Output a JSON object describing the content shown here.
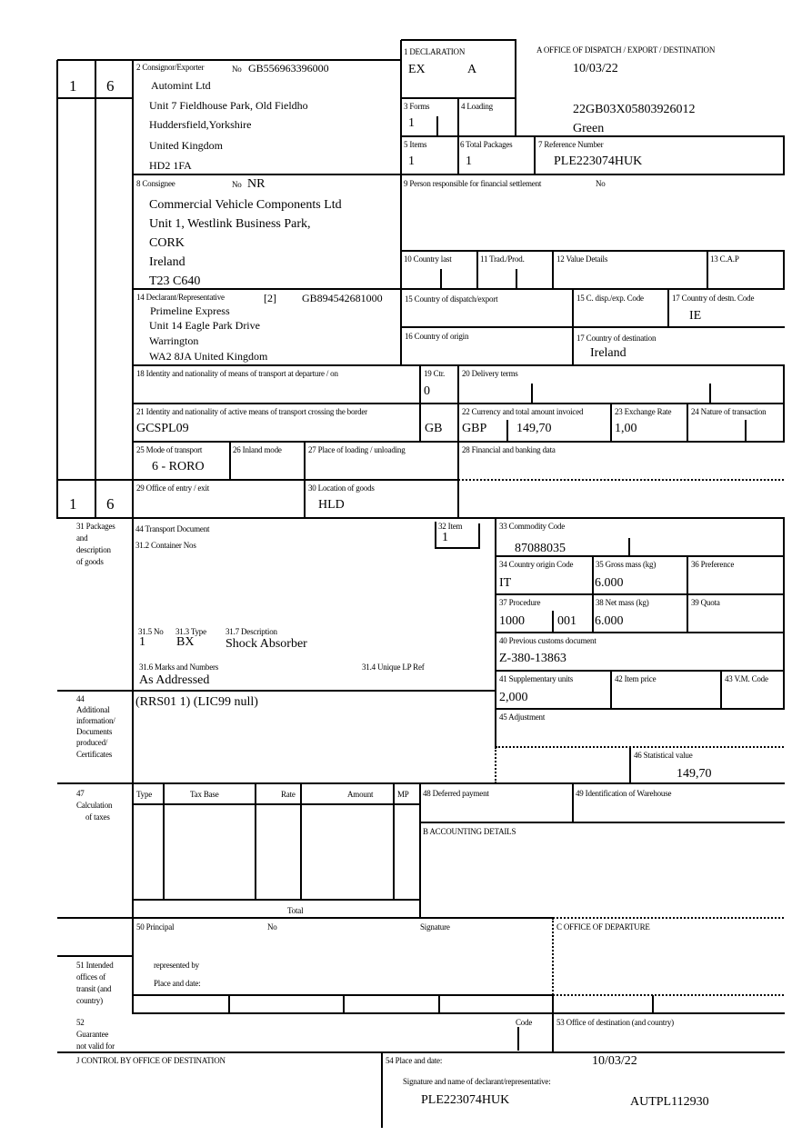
{
  "header": {
    "office_label": "A     OFFICE OF DISPATCH / EXPORT / DESTINATION",
    "date": "10/03/22",
    "mrn": "22GB03X05803926012",
    "route": "Green"
  },
  "left_counters": {
    "top": [
      "1",
      "6"
    ],
    "bottom": [
      "1",
      "6"
    ]
  },
  "box1": {
    "label": "1 DECLARATION",
    "type": "EX",
    "subtype": "A"
  },
  "box2": {
    "label": "2 Consignor/Exporter",
    "no_label": "No",
    "no": "GB556963396000",
    "lines": [
      "Automint Ltd",
      "Unit 7 Fieldhouse Park, Old Fieldho",
      "Huddersfield,Yorkshire",
      "United Kingdom",
      "HD2 1FA"
    ]
  },
  "box3": {
    "label": "3 Forms",
    "value": "1"
  },
  "box4": {
    "label": "4 Loading"
  },
  "box5": {
    "label": "5 Items",
    "value": "1"
  },
  "box6": {
    "label": "6 Total Packages",
    "value": "1"
  },
  "box7": {
    "label": "7 Reference Number",
    "value": "PLE223074HUK"
  },
  "box8": {
    "label": "8 Consignee",
    "no_label": "No",
    "no": "NR",
    "lines": [
      "Commercial Vehicle Components Ltd",
      "Unit 1, Westlink Business Park,",
      "CORK",
      "Ireland",
      "T23 C640"
    ]
  },
  "box9": {
    "label": "9 Person responsible for financial settlement",
    "no_label": "No"
  },
  "box10": {
    "label": "10 Country last"
  },
  "box11": {
    "label": "11 Trad./Prod."
  },
  "box12": {
    "label": "12 Value Details"
  },
  "box13": {
    "label": "13 C.A.P"
  },
  "box14": {
    "label": "14 Declarant/Representative",
    "rep_code": "[2]",
    "no": "GB894542681000",
    "lines": [
      "Primeline Express",
      "Unit 14 Eagle Park Drive",
      "Warrington",
      "WA2 8JA United Kingdom"
    ]
  },
  "box15": {
    "label": "15 Country of dispatch/export"
  },
  "box15a": {
    "label": "15 C. disp./exp. Code"
  },
  "box17a": {
    "label": "17 Country of destn. Code",
    "value": "IE"
  },
  "box16": {
    "label": "16 Country of origin"
  },
  "box17": {
    "label": "17 Country of destination",
    "value": "Ireland"
  },
  "box18": {
    "label": "18 Identity and nationality of means of transport at departure / on"
  },
  "box19": {
    "label": "19 Ctr.",
    "value": "0"
  },
  "box20": {
    "label": "20 Delivery terms"
  },
  "box21": {
    "label": "21 Identity and nationality of active means of transport crossing the border",
    "value": "GCSPL09",
    "nationality": "GB"
  },
  "box22": {
    "label": "22 Currency and total amount invoiced",
    "currency": "GBP",
    "amount": "149,70"
  },
  "box23": {
    "label": "23 Exchange Rate",
    "value": "1,00"
  },
  "box24": {
    "label": "24 Nature of transaction"
  },
  "box25": {
    "label": "25 Mode of transport",
    "value": "6 - RORO"
  },
  "box26": {
    "label": "26 Inland mode"
  },
  "box27": {
    "label": "27 Place of loading / unloading"
  },
  "box28": {
    "label": "28 Financial and banking data"
  },
  "box29": {
    "label": "29 Office of entry / exit"
  },
  "box30": {
    "label": "30 Location of goods",
    "value": "HLD"
  },
  "box31": {
    "side_label": [
      "31 Packages",
      "and",
      "description",
      "of goods"
    ],
    "transport_doc_label": "44 Transport Document",
    "container_label": "31.2 Container Nos",
    "no_label": "31.5 No",
    "no": "1",
    "type_label": "31.3 Type",
    "type": "BX",
    "desc_label": "31.7 Description",
    "desc": "Shock Absorber",
    "marks_label": "31.6 Marks and Numbers",
    "marks": "As Addressed",
    "lp_label": "31.4 Unique LP Ref"
  },
  "box32": {
    "label": "32 Item",
    "value": "1"
  },
  "box33": {
    "label": "33 Commodity Code",
    "value": "87088035"
  },
  "box34": {
    "label": "34 Country origin Code",
    "value": "IT"
  },
  "box35": {
    "label": "35 Gross mass (kg)",
    "value": "6.000"
  },
  "box36": {
    "label": "36 Preference"
  },
  "box37": {
    "label": "37 Procedure",
    "value": "1000",
    "value2": "001"
  },
  "box38": {
    "label": "38 Net mass (kg)",
    "value": "6.000"
  },
  "box39": {
    "label": "39 Quota"
  },
  "box40": {
    "label": "40 Previous customs document",
    "value": "Z-380-13863"
  },
  "box41": {
    "label": "41 Supplementary units",
    "value": "2,000"
  },
  "box42": {
    "label": "42 Item price"
  },
  "box43": {
    "label": "43 V.M. Code"
  },
  "box44": {
    "side_label": [
      "44",
      "Additional",
      "information/",
      "Documents",
      "produced/",
      "Certificates"
    ],
    "value": "(RRS01 1) (LIC99 null)"
  },
  "box45": {
    "label": "45 Adjustment"
  },
  "box46": {
    "label": "46 Statistical value",
    "value": "149,70"
  },
  "box47": {
    "side_label": [
      "47",
      "Calculation",
      "of taxes"
    ],
    "columns": [
      "Type",
      "Tax Base",
      "Rate",
      "Amount",
      "MP"
    ],
    "total_label": "Total"
  },
  "box48": {
    "label": "48 Deferred payment"
  },
  "box49": {
    "label": "49 Identification of Warehouse"
  },
  "boxB": {
    "label": "B ACCOUNTING DETAILS"
  },
  "box50": {
    "label": "50 Principal",
    "no_label": "No",
    "signature_label": "Signature",
    "represented_label": "represented by",
    "place_label": "Place and date:"
  },
  "boxC": {
    "label": "C OFFICE OF DEPARTURE"
  },
  "box51": {
    "side_label": [
      "51 Intended",
      "offices of",
      "transit (and",
      "country)"
    ]
  },
  "box52": {
    "side_label": [
      "52",
      "Guarantee",
      "not valid for"
    ],
    "code_label": "Code"
  },
  "box53": {
    "label": "53 Office of destination (and country)"
  },
  "boxJ": {
    "label": "J CONTROL BY OFFICE OF DESTINATION"
  },
  "box54": {
    "label": "54 Place and date:",
    "date": "10/03/22",
    "sig_label": "Signature and name of declarant/representative:",
    "declarant": "PLE223074HUK",
    "auth": "AUTPL112930"
  }
}
